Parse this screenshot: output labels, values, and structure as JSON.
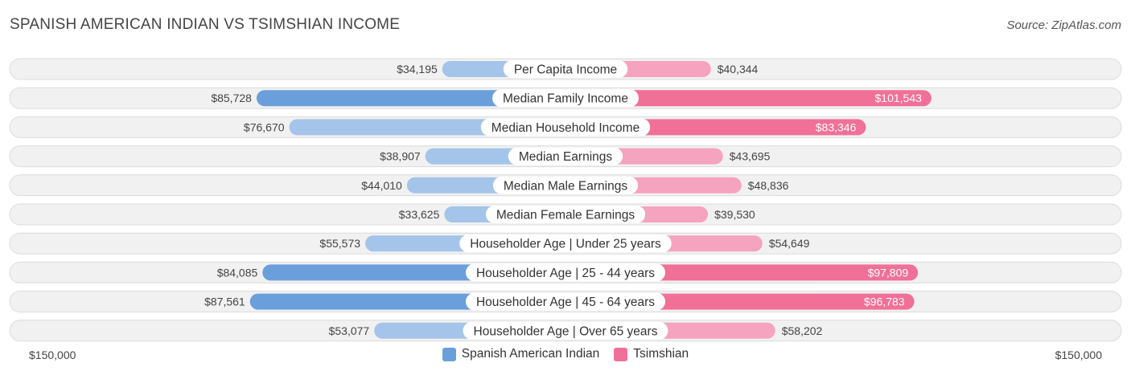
{
  "title": "SPANISH AMERICAN INDIAN VS TSIMSHIAN INCOME",
  "source": "Source: ZipAtlas.com",
  "colors": {
    "left_dark": "#6a9fdc",
    "left_light": "#a4c4ea",
    "right_dark": "#f07098",
    "right_light": "#f5a3bf"
  },
  "chart_data": {
    "type": "bar",
    "orientation": "horizontal-diverging",
    "categories": [
      "Per Capita Income",
      "Median Family Income",
      "Median Household Income",
      "Median Earnings",
      "Median Male Earnings",
      "Median Female Earnings",
      "Householder Age | Under 25 years",
      "Householder Age | 25 - 44 years",
      "Householder Age | 45 - 64 years",
      "Householder Age | Over 65 years"
    ],
    "series": [
      {
        "name": "Spanish American Indian",
        "values": [
          34195,
          85728,
          76670,
          38907,
          44010,
          33625,
          55573,
          84085,
          87561,
          53077
        ],
        "labels": [
          "$34,195",
          "$85,728",
          "$76,670",
          "$38,907",
          "$44,010",
          "$33,625",
          "$55,573",
          "$84,085",
          "$87,561",
          "$53,077"
        ]
      },
      {
        "name": "Tsimshian",
        "values": [
          40344,
          101543,
          83346,
          43695,
          48836,
          39530,
          54649,
          97809,
          96783,
          58202
        ],
        "labels": [
          "$40,344",
          "$101,543",
          "$83,346",
          "$43,695",
          "$48,836",
          "$39,530",
          "$54,649",
          "$97,809",
          "$96,783",
          "$58,202"
        ]
      }
    ],
    "xlim": [
      0,
      150000
    ],
    "axis_left_label": "$150,000",
    "axis_right_label": "$150,000"
  }
}
